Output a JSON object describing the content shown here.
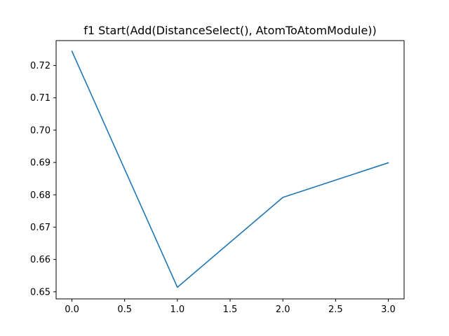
{
  "chart_data": {
    "type": "line",
    "title": "f1 Start(Add(DistanceSelect(), AtomToAtomModule))",
    "xlabel": "",
    "ylabel": "",
    "xlim": [
      -0.15,
      3.15
    ],
    "ylim": [
      0.6478,
      0.7277
    ],
    "xticks": [
      0.0,
      0.5,
      1.0,
      1.5,
      2.0,
      2.5,
      3.0
    ],
    "xtick_labels": [
      "0.0",
      "0.5",
      "1.0",
      "1.5",
      "2.0",
      "2.5",
      "3.0"
    ],
    "yticks": [
      0.65,
      0.66,
      0.67,
      0.68,
      0.69,
      0.7,
      0.71,
      0.72
    ],
    "ytick_labels": [
      "0.65",
      "0.66",
      "0.67",
      "0.68",
      "0.69",
      "0.70",
      "0.71",
      "0.72"
    ],
    "grid": false,
    "series": [
      {
        "x": [
          0,
          1,
          2,
          3
        ],
        "values": [
          0.7244,
          0.6514,
          0.6792,
          0.6899
        ],
        "color": "#1f77b4"
      }
    ]
  }
}
